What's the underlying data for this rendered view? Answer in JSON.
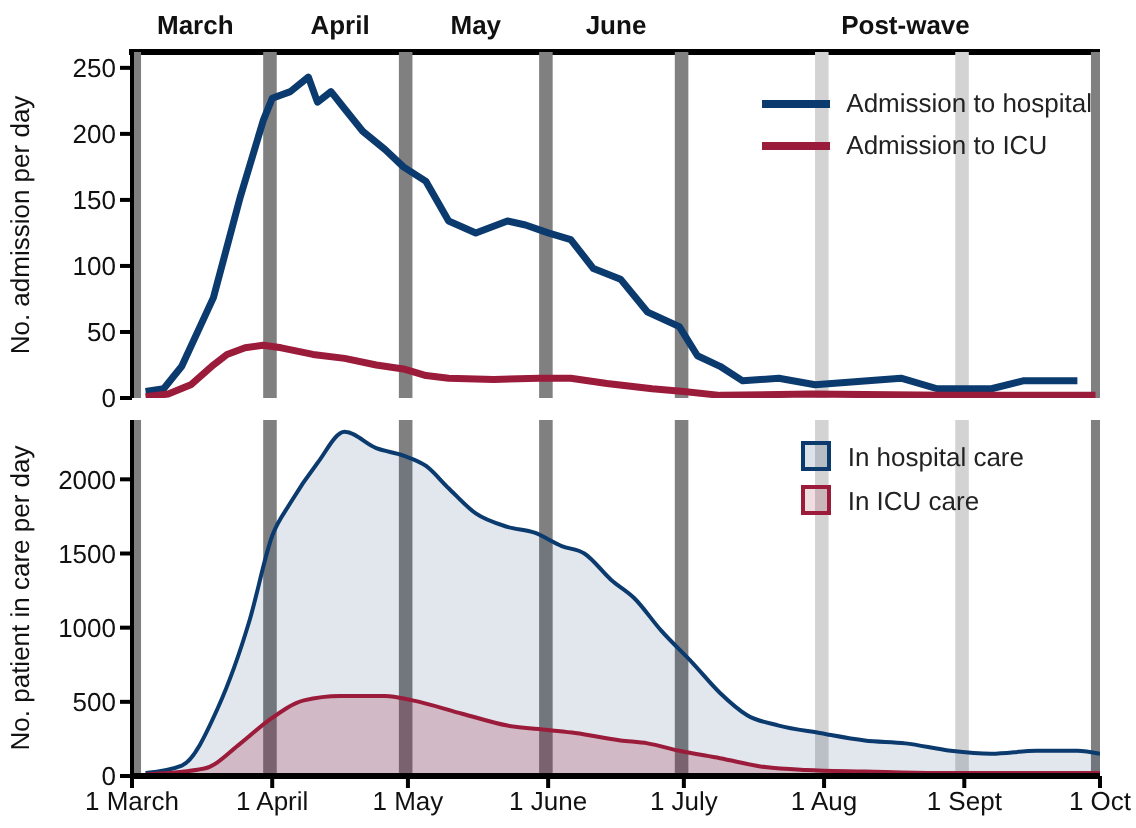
{
  "chart_data": [
    {
      "type": "line",
      "ylabel": "No. admission per day",
      "xlim": [
        "--03-01",
        "--10-01"
      ],
      "x2lim": [
        "--03-01",
        "--10-01"
      ],
      "x2ticks": [
        {
          "value": "--03-15",
          "label": "March"
        },
        {
          "value": "--04-16",
          "label": "April"
        },
        {
          "value": "--05-16",
          "label": "May"
        },
        {
          "value": "--06-16",
          "label": "June"
        },
        {
          "value": "--08-19",
          "label": "Post-wave"
        }
      ],
      "ylim": [
        0,
        262
      ],
      "yticks": [
        0,
        50,
        100,
        150,
        200,
        250
      ],
      "tick_labels": "y",
      "legend": "top right",
      "grid": false,
      "bands": [
        {
          "axis": "x",
          "from": "--03-01",
          "to": "--03-03",
          "color": "#808080"
        },
        {
          "axis": "x",
          "from": "--03-30",
          "to": "--04-02",
          "color": "#808080"
        },
        {
          "axis": "x",
          "from": "--04-29",
          "to": "--05-02",
          "color": "#808080"
        },
        {
          "axis": "x",
          "from": "--05-30",
          "to": "--06-02",
          "color": "#808080"
        },
        {
          "axis": "x",
          "from": "--06-29",
          "to": "--07-02",
          "color": "#808080"
        },
        {
          "axis": "x",
          "from": "--07-30",
          "to": "--08-02",
          "color": "#d3d3d3"
        },
        {
          "axis": "x",
          "from": "--08-30",
          "to": "--09-02",
          "color": "#d3d3d3"
        },
        {
          "axis": "x",
          "from": "--09-29",
          "to": "--10-01",
          "color": "#808080"
        }
      ],
      "series": [
        {
          "name": "Admission to hospital",
          "color": "#0b3a6e",
          "x": [
            "--03-04",
            "--03-08",
            "--03-12",
            "--03-19",
            "--03-25",
            "--03-30",
            "--04-01",
            "--04-05",
            "--04-09",
            "--04-11",
            "--04-14",
            "--04-17",
            "--04-21",
            "--04-26",
            "--04-30",
            "--05-05",
            "--05-10",
            "--05-16",
            "--05-23",
            "--05-27",
            "--06-01",
            "--06-06",
            "--06-11",
            "--06-17",
            "--06-23",
            "--06-30",
            "--07-04",
            "--07-09",
            "--07-14",
            "--07-22",
            "--07-30",
            "--08-18",
            "--08-26",
            "--09-07",
            "--09-14",
            "--09-26"
          ],
          "values": [
            5,
            7,
            24,
            76,
            153,
            210,
            227,
            232,
            243,
            224,
            232,
            219,
            202,
            188,
            175,
            164,
            134,
            125,
            134,
            131,
            125,
            120,
            98,
            90,
            65,
            54,
            32,
            24,
            13,
            15,
            10,
            15,
            7,
            7,
            13,
            13
          ]
        },
        {
          "name": "Admission to ICU",
          "color": "#9b1b3a",
          "x": [
            "--03-04",
            "--03-09",
            "--03-14",
            "--03-19",
            "--03-22",
            "--03-26",
            "--03-30",
            "--04-03",
            "--04-10",
            "--04-17",
            "--04-24",
            "--04-30",
            "--05-05",
            "--05-10",
            "--05-20",
            "--05-30",
            "--06-06",
            "--06-14",
            "--06-24",
            "--07-01",
            "--07-09",
            "--07-29",
            "--08-28",
            "--09-30"
          ],
          "values": [
            1,
            3,
            10,
            25,
            33,
            38,
            40,
            38,
            33,
            30,
            25,
            22,
            17,
            15,
            14,
            15,
            15,
            11,
            7,
            5,
            2,
            3,
            2,
            2
          ]
        }
      ]
    },
    {
      "type": "area",
      "ylabel": "No. patient in care per day",
      "xlim": [
        "--03-01",
        "--10-01"
      ],
      "xticks": [
        {
          "value": "--03-01",
          "label": "1 March"
        },
        {
          "value": "--04-01",
          "label": "1 April"
        },
        {
          "value": "--05-01",
          "label": "1 May"
        },
        {
          "value": "--06-01",
          "label": "1 June"
        },
        {
          "value": "--07-01",
          "label": "1 July"
        },
        {
          "value": "--08-01",
          "label": "1 Aug"
        },
        {
          "value": "--09-01",
          "label": "1 Sept"
        },
        {
          "value": "--10-01",
          "label": "1 Oct"
        }
      ],
      "ylim": [
        0,
        2400
      ],
      "yticks": [
        0,
        500,
        1000,
        1500,
        2000
      ],
      "legend": "top right",
      "grid": false,
      "bands": [
        {
          "axis": "x",
          "from": "--03-01",
          "to": "--03-03",
          "color": "#808080"
        },
        {
          "axis": "x",
          "from": "--03-30",
          "to": "--04-02",
          "color": "#808080"
        },
        {
          "axis": "x",
          "from": "--04-29",
          "to": "--05-02",
          "color": "#808080"
        },
        {
          "axis": "x",
          "from": "--05-30",
          "to": "--06-02",
          "color": "#808080"
        },
        {
          "axis": "x",
          "from": "--06-29",
          "to": "--07-02",
          "color": "#808080"
        },
        {
          "axis": "x",
          "from": "--07-30",
          "to": "--08-02",
          "color": "#d3d3d3"
        },
        {
          "axis": "x",
          "from": "--08-30",
          "to": "--09-02",
          "color": "#d3d3d3"
        },
        {
          "axis": "x",
          "from": "--09-29",
          "to": "--10-01",
          "color": "#808080"
        }
      ],
      "series": [
        {
          "name": "In hospital care",
          "color": "#0b3a6e",
          "x": [
            "--03-04",
            "--03-12",
            "--03-20",
            "--03-27",
            "--04-01",
            "--04-05",
            "--04-11",
            "--04-17",
            "--04-24",
            "--04-30",
            "--05-05",
            "--05-10",
            "--05-16",
            "--05-23",
            "--05-29",
            "--06-04",
            "--06-09",
            "--06-15",
            "--06-20",
            "--06-26",
            "--07-03",
            "--07-09",
            "--07-15",
            "--07-22",
            "--07-31",
            "--08-10",
            "--08-19",
            "--08-29",
            "--09-07",
            "--09-17",
            "--09-26",
            "--10-01"
          ],
          "values": [
            20,
            70,
            460,
            1050,
            1620,
            1840,
            2110,
            2320,
            2210,
            2160,
            2090,
            1940,
            1770,
            1680,
            1640,
            1550,
            1500,
            1320,
            1200,
            980,
            760,
            560,
            410,
            340,
            290,
            240,
            220,
            170,
            150,
            170,
            170,
            150
          ]
        },
        {
          "name": "In ICU care",
          "color": "#9b1b3a",
          "x": [
            "--03-04",
            "--03-17",
            "--03-25",
            "--03-31",
            "--04-08",
            "--04-16",
            "--04-26",
            "--05-02",
            "--05-13",
            "--05-23",
            "--06-01",
            "--06-07",
            "--06-17",
            "--06-23",
            "--06-30",
            "--07-09",
            "--07-19",
            "--07-28",
            "--08-10",
            "--08-26",
            "--09-10",
            "--10-01"
          ],
          "values": [
            10,
            50,
            220,
            370,
            510,
            540,
            540,
            510,
            420,
            340,
            310,
            290,
            240,
            220,
            170,
            120,
            60,
            40,
            30,
            20,
            20,
            20
          ]
        }
      ]
    }
  ]
}
